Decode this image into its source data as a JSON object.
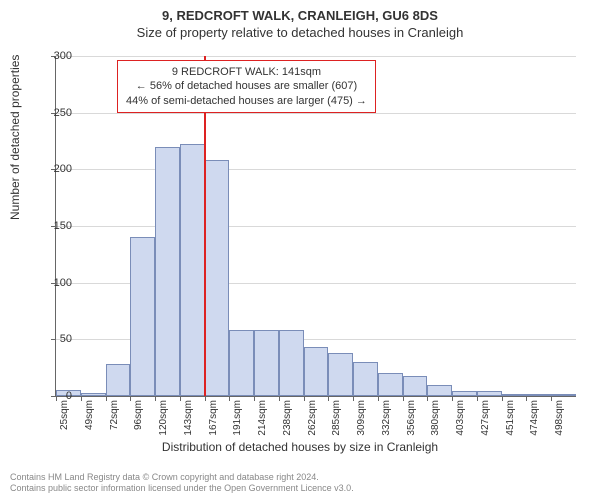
{
  "title_main": "9, REDCROFT WALK, CRANLEIGH, GU6 8DS",
  "title_sub": "Size of property relative to detached houses in Cranleigh",
  "ylabel": "Number of detached properties",
  "xlabel": "Distribution of detached houses by size in Cranleigh",
  "chart": {
    "type": "histogram",
    "ylim": [
      0,
      300
    ],
    "ytick_step": 50,
    "yticks": [
      0,
      50,
      100,
      150,
      200,
      250,
      300
    ],
    "xtick_labels": [
      "25sqm",
      "49sqm",
      "72sqm",
      "96sqm",
      "120sqm",
      "143sqm",
      "167sqm",
      "191sqm",
      "214sqm",
      "238sqm",
      "262sqm",
      "285sqm",
      "309sqm",
      "332sqm",
      "356sqm",
      "380sqm",
      "403sqm",
      "427sqm",
      "451sqm",
      "474sqm",
      "498sqm"
    ],
    "values": [
      5,
      3,
      28,
      140,
      220,
      222,
      208,
      58,
      58,
      58,
      43,
      38,
      30,
      20,
      18,
      10,
      4,
      4,
      2,
      2,
      2
    ],
    "bar_color": "#cfd9ef",
    "bar_border": "#7a8db8",
    "grid_color": "#d9d9d9",
    "background_color": "#ffffff",
    "reference_line_index": 5,
    "reference_line_color": "#d22",
    "bar_width_ratio": 1.0
  },
  "annotation": {
    "line1": "9 REDCROFT WALK: 141sqm",
    "line2": "← 56% of detached houses are smaller (607)",
    "line3": "44% of semi-detached houses are larger (475) →",
    "border_color": "#d22"
  },
  "attribution": {
    "line1": "Contains HM Land Registry data © Crown copyright and database right 2024.",
    "line2": "Contains public sector information licensed under the Open Government Licence v3.0."
  }
}
